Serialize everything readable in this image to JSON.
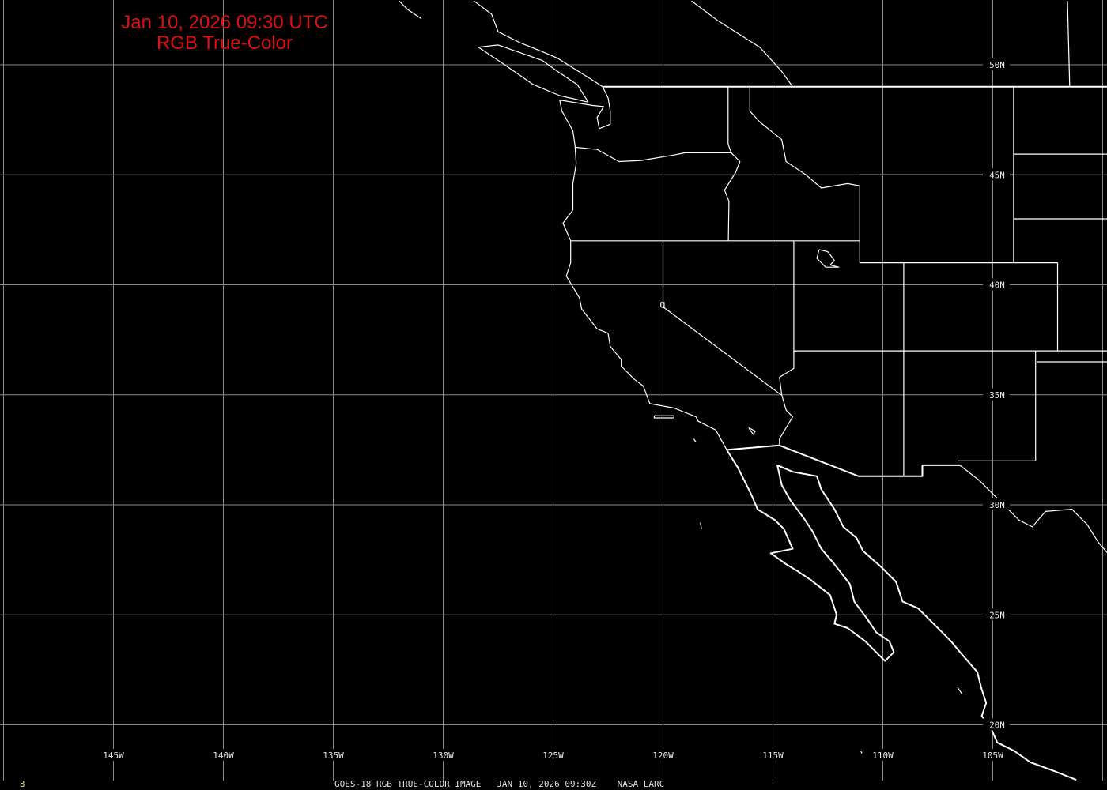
{
  "title": {
    "line1": "Jan 10, 2026 09:30 UTC",
    "line2": "RGB True-Color"
  },
  "footer": {
    "frame": "3",
    "text": "GOES-18 RGB TRUE-COLOR IMAGE   JAN 10, 2026 09:30Z    NASA LARC"
  },
  "colors": {
    "background": "#000000",
    "title": "#e01010",
    "grid": "#8a8a8a",
    "borders": "#ffffff",
    "frame": "#e6e66a"
  },
  "grid": {
    "longitudes": [
      -150,
      -145,
      -140,
      -135,
      -130,
      -125,
      -120,
      -115,
      -110,
      -105,
      -100
    ],
    "latitudes": [
      50,
      45,
      40,
      35,
      30,
      25,
      20
    ],
    "lon_labels": [
      {
        "lon": -145,
        "text": "145W"
      },
      {
        "lon": -140,
        "text": "140W"
      },
      {
        "lon": -135,
        "text": "135W"
      },
      {
        "lon": -130,
        "text": "130W"
      },
      {
        "lon": -125,
        "text": "125W"
      },
      {
        "lon": -120,
        "text": "120W"
      },
      {
        "lon": -115,
        "text": "115W"
      },
      {
        "lon": -110,
        "text": "110W"
      },
      {
        "lon": -105,
        "text": "105W"
      }
    ],
    "lat_labels": [
      {
        "lat": 50,
        "text": "50N"
      },
      {
        "lat": 45,
        "text": "45N"
      },
      {
        "lat": 40,
        "text": "40N"
      },
      {
        "lat": 35,
        "text": "35N"
      },
      {
        "lat": 30,
        "text": "30N"
      },
      {
        "lat": 25,
        "text": "25N"
      },
      {
        "lat": 20,
        "text": "20N"
      }
    ]
  },
  "map_lines": {
    "us_coast": [
      [
        -122.75,
        49.0
      ],
      [
        -122.5,
        48.5
      ],
      [
        -122.4,
        47.9
      ],
      [
        -122.4,
        47.3
      ],
      [
        -122.9,
        47.1
      ],
      [
        -123.0,
        47.6
      ],
      [
        -122.7,
        48.1
      ],
      [
        -123.2,
        48.15
      ],
      [
        -124.7,
        48.4
      ],
      [
        -124.6,
        47.9
      ],
      [
        -124.1,
        47.0
      ],
      [
        -124.0,
        46.3
      ],
      [
        -123.95,
        45.5
      ],
      [
        -124.1,
        44.6
      ],
      [
        -124.1,
        43.4
      ],
      [
        -124.55,
        42.8
      ],
      [
        -124.2,
        42.0
      ],
      [
        -124.2,
        41.0
      ],
      [
        -124.4,
        40.4
      ],
      [
        -123.8,
        39.4
      ],
      [
        -123.7,
        38.9
      ],
      [
        -123.0,
        38.0
      ],
      [
        -122.5,
        37.8
      ],
      [
        -122.4,
        37.2
      ],
      [
        -121.9,
        36.6
      ],
      [
        -121.9,
        36.3
      ],
      [
        -121.3,
        35.7
      ],
      [
        -120.9,
        35.4
      ],
      [
        -120.6,
        34.6
      ],
      [
        -119.5,
        34.4
      ],
      [
        -118.5,
        34.0
      ],
      [
        -118.4,
        33.8
      ],
      [
        -117.6,
        33.4
      ],
      [
        -117.1,
        32.5
      ]
    ],
    "mexico_coast": [
      [
        -117.1,
        32.5
      ],
      [
        -116.6,
        31.7
      ],
      [
        -116.3,
        31.1
      ],
      [
        -116.0,
        30.5
      ],
      [
        -115.7,
        29.8
      ],
      [
        -114.9,
        29.3
      ],
      [
        -114.5,
        28.9
      ],
      [
        -114.1,
        28.0
      ],
      [
        -115.1,
        27.8
      ],
      [
        -114.4,
        27.3
      ],
      [
        -113.9,
        27.0
      ],
      [
        -113.3,
        26.6
      ],
      [
        -112.4,
        25.9
      ],
      [
        -112.1,
        25.0
      ],
      [
        -112.2,
        24.6
      ],
      [
        -111.6,
        24.4
      ],
      [
        -110.8,
        23.8
      ],
      [
        -110.2,
        23.2
      ],
      [
        -109.9,
        22.9
      ],
      [
        -109.5,
        23.3
      ],
      [
        -109.7,
        23.8
      ],
      [
        -110.3,
        24.2
      ],
      [
        -110.7,
        24.8
      ],
      [
        -111.3,
        25.6
      ],
      [
        -111.5,
        26.4
      ],
      [
        -112.2,
        27.3
      ],
      [
        -112.8,
        28.0
      ],
      [
        -113.2,
        28.8
      ],
      [
        -113.6,
        29.4
      ],
      [
        -114.2,
        30.2
      ],
      [
        -114.6,
        30.9
      ],
      [
        -114.8,
        31.8
      ],
      [
        -114.1,
        31.5
      ],
      [
        -113.0,
        31.3
      ],
      [
        -112.8,
        30.7
      ],
      [
        -112.2,
        29.8
      ],
      [
        -111.8,
        29.0
      ],
      [
        -111.2,
        28.5
      ],
      [
        -110.9,
        27.9
      ],
      [
        -110.1,
        27.2
      ],
      [
        -109.4,
        26.5
      ],
      [
        -109.1,
        25.6
      ],
      [
        -108.4,
        25.3
      ],
      [
        -107.9,
        24.8
      ],
      [
        -107.4,
        24.3
      ],
      [
        -106.9,
        23.8
      ],
      [
        -106.4,
        23.2
      ],
      [
        -105.7,
        22.4
      ],
      [
        -105.5,
        21.6
      ],
      [
        -105.3,
        21.0
      ],
      [
        -105.5,
        20.4
      ],
      [
        -105.1,
        19.9
      ],
      [
        -104.8,
        19.2
      ],
      [
        -104.0,
        18.8
      ],
      [
        -103.3,
        18.3
      ],
      [
        -102.2,
        17.9
      ],
      [
        -101.2,
        17.5
      ]
    ],
    "vancouver_island": [
      [
        -123.4,
        48.3
      ],
      [
        -124.7,
        48.6
      ],
      [
        -125.9,
        49.1
      ],
      [
        -127.2,
        50.0
      ],
      [
        -128.4,
        50.8
      ],
      [
        -127.5,
        50.9
      ],
      [
        -125.5,
        50.2
      ],
      [
        -124.8,
        49.7
      ],
      [
        -123.9,
        49.1
      ],
      [
        -123.4,
        48.3
      ]
    ],
    "bc_coast": [
      [
        -122.75,
        49.0
      ],
      [
        -123.2,
        49.3
      ],
      [
        -124.0,
        49.8
      ],
      [
        -124.8,
        50.3
      ],
      [
        -125.5,
        50.6
      ],
      [
        -126.5,
        51.0
      ],
      [
        -127.5,
        51.5
      ],
      [
        -127.8,
        52.3
      ],
      [
        -128.6,
        52.9
      ]
    ],
    "haida_gwaii": [
      [
        -131.0,
        52.1
      ],
      [
        -131.6,
        52.5
      ],
      [
        -132.0,
        52.9
      ]
    ],
    "canada_border": [
      [
        -122.75,
        49.0
      ],
      [
        -99.6,
        49.0
      ]
    ],
    "bc_alberta": [
      [
        -118.7,
        52.9
      ],
      [
        -117.5,
        52.0
      ],
      [
        -115.6,
        50.8
      ],
      [
        -114.6,
        49.7
      ],
      [
        -114.1,
        49.0
      ]
    ],
    "sask_manitoba": [
      [
        -101.6,
        52.9
      ],
      [
        -101.5,
        49.0
      ]
    ],
    "wa_or": [
      [
        -124.0,
        46.25
      ],
      [
        -123.0,
        46.15
      ],
      [
        -122.0,
        45.6
      ],
      [
        -121.0,
        45.65
      ],
      [
        -119.5,
        45.9
      ],
      [
        -119.0,
        46.0
      ],
      [
        -116.9,
        46.0
      ]
    ],
    "wa_id": [
      [
        -117.04,
        49.0
      ],
      [
        -117.04,
        46.4
      ],
      [
        -116.9,
        46.0
      ]
    ],
    "or_id": [
      [
        -116.9,
        46.0
      ],
      [
        -116.5,
        45.6
      ],
      [
        -116.7,
        45.1
      ],
      [
        -117.2,
        44.3
      ],
      [
        -117.0,
        43.8
      ],
      [
        -117.03,
        42.0
      ]
    ],
    "id_mt": [
      [
        -116.05,
        49.0
      ],
      [
        -116.05,
        47.9
      ],
      [
        -115.6,
        47.4
      ],
      [
        -114.6,
        46.6
      ],
      [
        -114.4,
        45.6
      ],
      [
        -113.5,
        45.0
      ],
      [
        -112.8,
        44.4
      ],
      [
        -111.6,
        44.6
      ],
      [
        -111.05,
        44.5
      ]
    ],
    "id_wy_ut": [
      [
        -111.05,
        44.5
      ],
      [
        -111.05,
        42.0
      ],
      [
        -111.05,
        41.0
      ]
    ],
    "mt_wy": [
      [
        -111.05,
        45.0
      ],
      [
        -104.05,
        45.0
      ]
    ],
    "mt_nd": [
      [
        -104.05,
        49.0
      ],
      [
        -104.05,
        41.0
      ]
    ],
    "nd_sd": [
      [
        -104.05,
        45.94
      ],
      [
        -99.6,
        45.94
      ]
    ],
    "sd_ne": [
      [
        -104.05,
        43.0
      ],
      [
        -99.6,
        43.0
      ]
    ],
    "lat41": [
      [
        -111.05,
        41.0
      ],
      [
        -102.05,
        41.0
      ]
    ],
    "co_east": [
      [
        -102.05,
        41.0
      ],
      [
        -102.05,
        37.0
      ]
    ],
    "lat37": [
      [
        -114.05,
        37.0
      ],
      [
        -99.6,
        37.0
      ]
    ],
    "ok_panhandle": [
      [
        -103.0,
        36.5
      ],
      [
        -99.6,
        36.5
      ]
    ],
    "nm_east": [
      [
        -103.05,
        37.0
      ],
      [
        -103.05,
        32.0
      ]
    ],
    "nm_south": [
      [
        -106.6,
        32.0
      ],
      [
        -103.05,
        32.0
      ]
    ],
    "four_corners": [
      [
        -109.05,
        41.0
      ],
      [
        -109.05,
        31.33
      ]
    ],
    "lat42": [
      [
        -124.2,
        42.0
      ],
      [
        -111.05,
        42.0
      ]
    ],
    "ut_nv": [
      [
        -114.05,
        42.0
      ],
      [
        -114.05,
        36.2
      ],
      [
        -114.7,
        35.8
      ],
      [
        -114.6,
        35.0
      ],
      [
        -114.4,
        34.3
      ],
      [
        -114.1,
        34.0
      ],
      [
        -114.7,
        33.0
      ],
      [
        -114.7,
        32.7
      ]
    ],
    "ca_nv": [
      [
        -120.0,
        42.0
      ],
      [
        -120.0,
        39.0
      ],
      [
        -114.63,
        35.0
      ]
    ],
    "or_nv_id": [
      [
        -117.03,
        42.0
      ],
      [
        -117.03,
        42.0
      ]
    ],
    "us_mexico": [
      [
        -117.1,
        32.5
      ],
      [
        -114.7,
        32.7
      ],
      [
        -111.1,
        31.3
      ],
      [
        -108.2,
        31.3
      ],
      [
        -108.2,
        31.8
      ],
      [
        -106.5,
        31.8
      ]
    ],
    "rio_grande": [
      [
        -106.5,
        31.8
      ],
      [
        -105.6,
        31.1
      ],
      [
        -104.5,
        30.0
      ],
      [
        -103.8,
        29.3
      ],
      [
        -103.2,
        29.0
      ],
      [
        -102.6,
        29.7
      ],
      [
        -101.4,
        29.8
      ],
      [
        -100.7,
        29.1
      ],
      [
        -100.2,
        28.3
      ],
      [
        -99.6,
        27.6
      ]
    ],
    "great_salt_lake": [
      [
        -112.9,
        41.6
      ],
      [
        -112.5,
        41.5
      ],
      [
        -112.2,
        41.1
      ],
      [
        -112.4,
        40.9
      ],
      [
        -112.0,
        40.8
      ],
      [
        -112.6,
        40.8
      ],
      [
        -113.0,
        41.2
      ],
      [
        -112.9,
        41.6
      ]
    ],
    "lake_tahoe": [
      [
        -120.1,
        39.2
      ],
      [
        -119.95,
        39.2
      ],
      [
        -119.95,
        38.95
      ],
      [
        -120.1,
        39.0
      ],
      [
        -120.1,
        39.2
      ]
    ],
    "salton_sea": [
      [
        -116.1,
        33.5
      ],
      [
        -115.8,
        33.35
      ],
      [
        -115.9,
        33.2
      ],
      [
        -116.1,
        33.5
      ]
    ],
    "channel_islands": [
      [
        -120.4,
        34.05
      ],
      [
        -119.5,
        34.05
      ],
      [
        -119.5,
        33.95
      ],
      [
        -120.4,
        33.95
      ],
      [
        -120.4,
        34.05
      ]
    ],
    "san_clemente": [
      [
        -118.6,
        33.0
      ],
      [
        -118.5,
        32.85
      ]
    ],
    "guadalupe": [
      [
        -118.3,
        29.2
      ],
      [
        -118.25,
        28.9
      ]
    ],
    "revillagigedo": [
      [
        -111.0,
        18.8
      ],
      [
        -110.95,
        18.7
      ]
    ],
    "tres_marias": [
      [
        -106.6,
        21.7
      ],
      [
        -106.4,
        21.4
      ]
    ]
  }
}
